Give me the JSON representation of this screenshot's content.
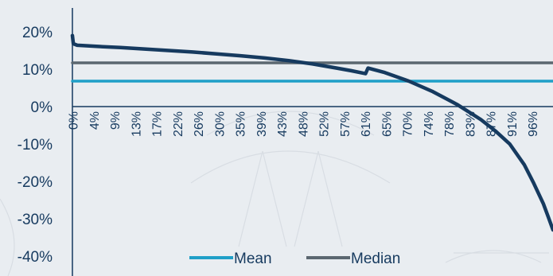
{
  "chart_data": {
    "type": "line",
    "title": "",
    "xlabel": "",
    "ylabel": "",
    "ylim": [
      -40,
      25
    ],
    "y_ticks": [
      "20%",
      "10%",
      "0%",
      "-10%",
      "-20%",
      "-30%",
      "-40%"
    ],
    "y_tick_values": [
      20,
      10,
      0,
      -10,
      -20,
      -30,
      -40
    ],
    "x_ticks": [
      "0%",
      "4%",
      "9%",
      "13%",
      "17%",
      "22%",
      "26%",
      "30%",
      "35%",
      "39%",
      "43%",
      "48%",
      "52%",
      "57%",
      "61%",
      "65%",
      "70%",
      "74%",
      "78%",
      "83%",
      "87%",
      "91%",
      "96%"
    ],
    "x_tick_values": [
      0,
      4.35,
      8.7,
      13.04,
      17.39,
      21.74,
      26.09,
      30.43,
      34.78,
      39.13,
      43.48,
      47.83,
      52.17,
      56.52,
      60.87,
      65.22,
      69.57,
      73.91,
      78.26,
      82.61,
      86.96,
      91.3,
      95.65
    ],
    "xlim": [
      0,
      100
    ],
    "grid": false,
    "legend_position": "bottom-center",
    "series": [
      {
        "name": "",
        "color": "#163a5f",
        "x": [
          0,
          0.2,
          1,
          5,
          10,
          15,
          20,
          25,
          30,
          35,
          40,
          45,
          50,
          55,
          58,
          61,
          61.5,
          65,
          70,
          75,
          80,
          85,
          88,
          91,
          94,
          96,
          98,
          99,
          100
        ],
        "y": [
          19,
          16.8,
          16.4,
          16.1,
          15.8,
          15.4,
          15,
          14.6,
          14.1,
          13.6,
          13,
          12.3,
          11.4,
          10.3,
          9.6,
          8.8,
          10.3,
          9.1,
          6.8,
          4,
          0.6,
          -3.5,
          -6.5,
          -10,
          -15.5,
          -20.5,
          -26,
          -29.5,
          -33
        ]
      },
      {
        "name": "Mean",
        "color": "#1f9fc8",
        "x": [
          0,
          100
        ],
        "y": [
          6.8,
          6.8
        ]
      },
      {
        "name": "Median",
        "color": "#5b6770",
        "x": [
          0,
          100
        ],
        "y": [
          11.7,
          11.7
        ]
      }
    ]
  }
}
